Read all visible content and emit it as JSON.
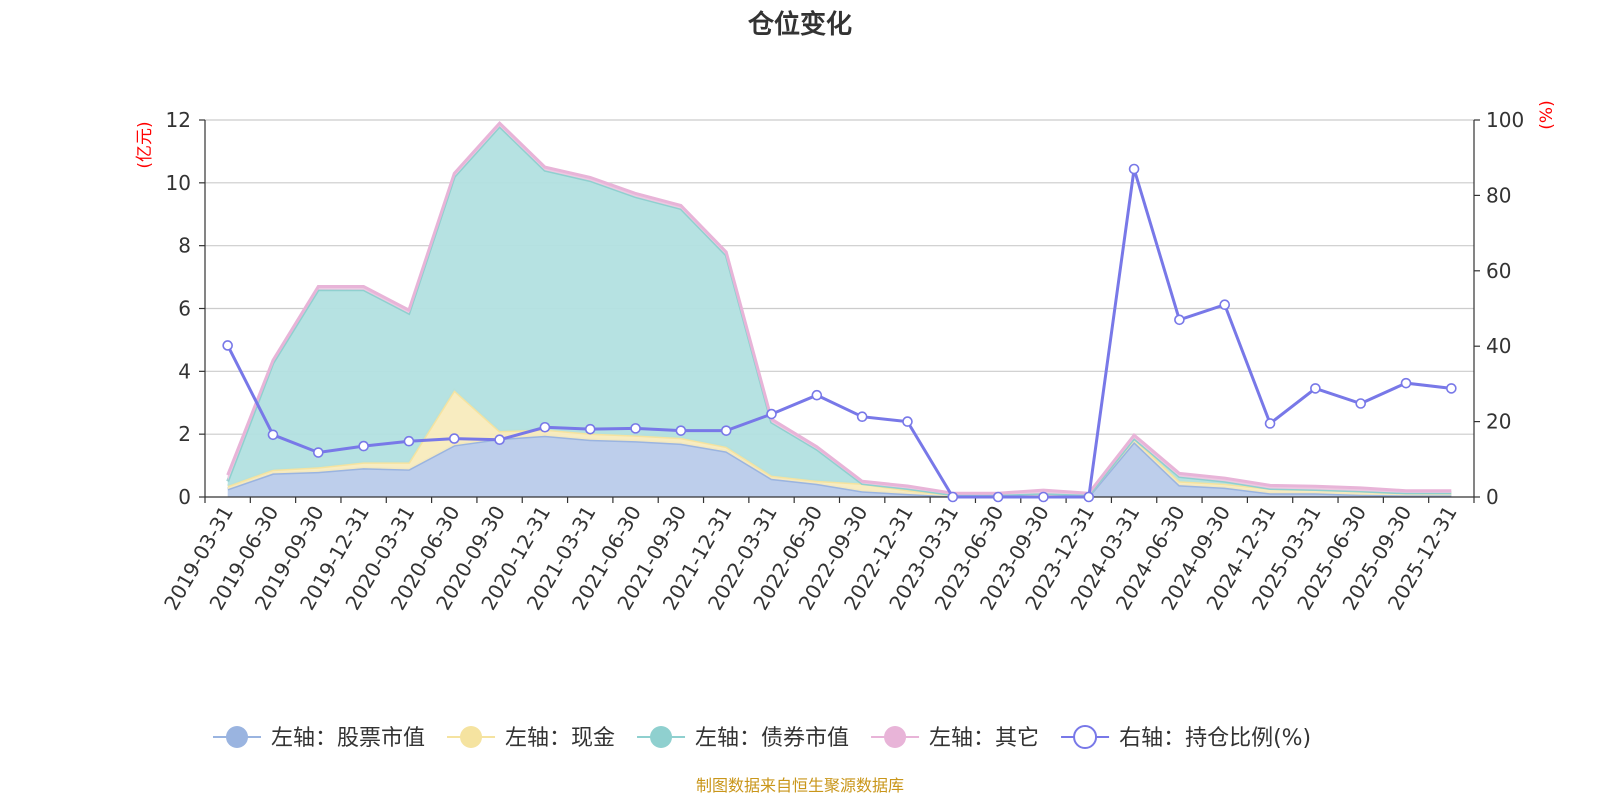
{
  "chart_data": {
    "type": "area",
    "title": "仓位变化",
    "left_axis_unit": "(亿元)",
    "right_axis_unit": "(%)",
    "ylim_left": [
      0,
      12
    ],
    "yticks_left": [
      "0",
      "2",
      "4",
      "6",
      "8",
      "10",
      "12"
    ],
    "ylim_right": [
      0,
      100
    ],
    "yticks_right": [
      "0",
      "20",
      "40",
      "60",
      "80",
      "100"
    ],
    "categories": [
      "2019-03-31",
      "2019-06-30",
      "2019-09-30",
      "2019-12-31",
      "2020-03-31",
      "2020-06-30",
      "2020-09-30",
      "2020-12-31",
      "2021-03-31",
      "2021-06-30",
      "2021-09-30",
      "2021-12-31",
      "2022-03-31",
      "2022-06-30",
      "2022-09-30",
      "2022-12-31",
      "2023-03-31",
      "2023-06-30",
      "2023-09-30",
      "2023-12-31",
      "2024-03-31",
      "2024-06-30",
      "2024-09-30",
      "2024-12-31",
      "2025-03-31",
      "2025-06-30",
      "2025-09-30",
      "2025-12-31"
    ],
    "series": [
      {
        "name": "左轴：股票市值",
        "axis": "left",
        "color": "#9ab4e0",
        "fill": "#b9cbea",
        "values": [
          0.25,
          0.75,
          0.8,
          0.92,
          0.88,
          1.65,
          1.85,
          1.95,
          1.82,
          1.78,
          1.7,
          1.45,
          0.58,
          0.42,
          0.18,
          0.1,
          0.02,
          0.02,
          0.02,
          0.02,
          1.75,
          0.38,
          0.3,
          0.12,
          0.12,
          0.07,
          0.05,
          0.05
        ]
      },
      {
        "name": "左轴：现金",
        "axis": "left",
        "color": "#f5e3a0",
        "fill": "#f8ebbd",
        "values": [
          0.1,
          0.12,
          0.15,
          0.18,
          0.22,
          1.75,
          0.25,
          0.2,
          0.2,
          0.18,
          0.18,
          0.15,
          0.1,
          0.1,
          0.25,
          0.12,
          0.05,
          0.05,
          0.1,
          0.05,
          0.12,
          0.12,
          0.12,
          0.15,
          0.12,
          0.12,
          0.08,
          0.08
        ]
      },
      {
        "name": "左轴：债券市值",
        "axis": "left",
        "color": "#8fd0cf",
        "fill": "#b2e0e0",
        "values": [
          0.15,
          3.4,
          5.65,
          5.5,
          4.75,
          6.8,
          9.7,
          8.25,
          8.05,
          7.6,
          7.3,
          6.1,
          1.7,
          1.0,
          0.0,
          0.05,
          0.0,
          0.0,
          0.0,
          0.0,
          0.0,
          0.15,
          0.08,
          0.0,
          0.0,
          0.0,
          0.0,
          0.0
        ]
      },
      {
        "name": "左轴：其它",
        "axis": "left",
        "color": "#e8b4d8",
        "fill": "#f0c8e2",
        "values": [
          0.2,
          0.08,
          0.1,
          0.1,
          0.1,
          0.1,
          0.1,
          0.1,
          0.1,
          0.1,
          0.1,
          0.1,
          0.1,
          0.08,
          0.07,
          0.08,
          0.05,
          0.05,
          0.1,
          0.05,
          0.1,
          0.1,
          0.1,
          0.1,
          0.1,
          0.1,
          0.07,
          0.07
        ]
      },
      {
        "name": "右轴：持仓比例(%)",
        "axis": "right",
        "color": "#7878e8",
        "type": "line",
        "values": [
          40.2,
          16.5,
          11.8,
          13.5,
          14.8,
          15.5,
          15.2,
          18.5,
          18.0,
          18.2,
          17.6,
          17.6,
          22.0,
          27.0,
          21.3,
          20.0,
          0.0,
          0.0,
          0.0,
          0.0,
          87.0,
          47.0,
          51.0,
          19.5,
          28.8,
          24.8,
          30.2,
          28.8
        ]
      }
    ],
    "source": "制图数据来自恒生聚源数据库"
  },
  "legend": [
    {
      "label": "左轴：股票市值",
      "color": "#9ab4e0",
      "marker": "filled-circle"
    },
    {
      "label": "左轴：现金",
      "color": "#f5e3a0",
      "marker": "filled-circle"
    },
    {
      "label": "左轴：债券市值",
      "color": "#8fd0cf",
      "marker": "filled-circle"
    },
    {
      "label": "左轴：其它",
      "color": "#e8b4d8",
      "marker": "filled-circle"
    },
    {
      "label": "右轴：持仓比例(%)",
      "color": "#7878e8",
      "marker": "hollow-circle"
    }
  ]
}
